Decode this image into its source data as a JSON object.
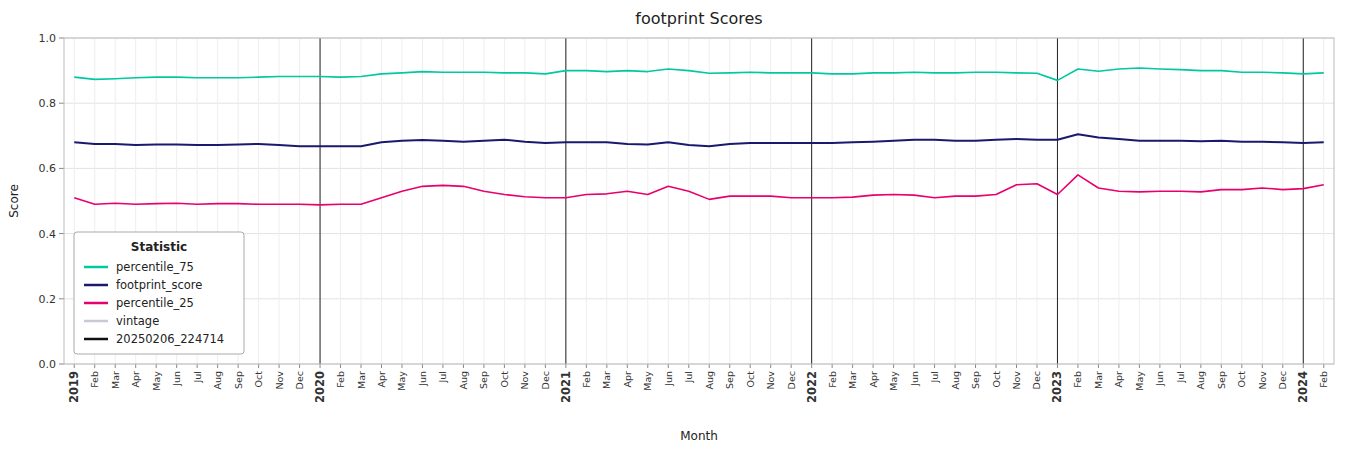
{
  "chart_data": {
    "type": "line",
    "title": "footprint Scores",
    "x_label": "Month",
    "y_label": "Score",
    "categories": [
      "2019",
      "Feb",
      "Mar",
      "Apr",
      "May",
      "Jun",
      "Jul",
      "Aug",
      "Sep",
      "Oct",
      "Nov",
      "Dec",
      "2020",
      "Feb",
      "Mar",
      "Apr",
      "May",
      "Jun",
      "Jul",
      "Aug",
      "Sep",
      "Oct",
      "Nov",
      "Dec",
      "2021",
      "Feb",
      "Mar",
      "Apr",
      "May",
      "Jun",
      "Jul",
      "Aug",
      "Sep",
      "Oct",
      "Nov",
      "Dec",
      "2022",
      "Feb",
      "Mar",
      "Apr",
      "May",
      "Jun",
      "Jul",
      "Aug",
      "Sep",
      "Oct",
      "Nov",
      "Dec",
      "2023",
      "Feb",
      "Mar",
      "Apr",
      "May",
      "Jun",
      "Jul",
      "Aug",
      "Sep",
      "Oct",
      "Nov",
      "Dec",
      "2024",
      "Feb"
    ],
    "series": [
      {
        "name": "percentile_75",
        "color": "#00c8a0",
        "values": [
          0.88,
          0.873,
          0.875,
          0.878,
          0.88,
          0.88,
          0.878,
          0.878,
          0.878,
          0.88,
          0.882,
          0.882,
          0.882,
          0.88,
          0.882,
          0.89,
          0.893,
          0.897,
          0.895,
          0.895,
          0.895,
          0.893,
          0.893,
          0.89,
          0.9,
          0.9,
          0.897,
          0.9,
          0.897,
          0.905,
          0.9,
          0.892,
          0.893,
          0.895,
          0.893,
          0.893,
          0.893,
          0.89,
          0.89,
          0.893,
          0.893,
          0.895,
          0.893,
          0.893,
          0.895,
          0.895,
          0.893,
          0.892,
          0.87,
          0.905,
          0.898,
          0.905,
          0.908,
          0.905,
          0.903,
          0.9,
          0.9,
          0.895,
          0.895,
          0.893,
          0.89,
          0.893
        ]
      },
      {
        "name": "footprint_score",
        "color": "#191970",
        "values": [
          0.68,
          0.675,
          0.675,
          0.672,
          0.673,
          0.673,
          0.672,
          0.672,
          0.673,
          0.675,
          0.672,
          0.668,
          0.668,
          0.668,
          0.668,
          0.68,
          0.685,
          0.687,
          0.685,
          0.682,
          0.685,
          0.688,
          0.682,
          0.678,
          0.68,
          0.68,
          0.68,
          0.675,
          0.673,
          0.68,
          0.672,
          0.668,
          0.675,
          0.678,
          0.678,
          0.678,
          0.678,
          0.678,
          0.68,
          0.682,
          0.685,
          0.688,
          0.688,
          0.685,
          0.685,
          0.688,
          0.69,
          0.688,
          0.688,
          0.705,
          0.695,
          0.69,
          0.685,
          0.685,
          0.685,
          0.683,
          0.685,
          0.682,
          0.682,
          0.68,
          0.678,
          0.68
        ]
      },
      {
        "name": "percentile_25",
        "color": "#e8006e",
        "values": [
          0.51,
          0.49,
          0.493,
          0.49,
          0.492,
          0.493,
          0.49,
          0.492,
          0.492,
          0.49,
          0.49,
          0.49,
          0.488,
          0.49,
          0.49,
          0.51,
          0.53,
          0.545,
          0.548,
          0.545,
          0.53,
          0.52,
          0.513,
          0.51,
          0.51,
          0.52,
          0.522,
          0.53,
          0.52,
          0.545,
          0.53,
          0.505,
          0.515,
          0.515,
          0.515,
          0.51,
          0.51,
          0.51,
          0.512,
          0.518,
          0.52,
          0.518,
          0.51,
          0.515,
          0.515,
          0.52,
          0.55,
          0.553,
          0.52,
          0.58,
          0.54,
          0.53,
          0.528,
          0.53,
          0.53,
          0.528,
          0.535,
          0.535,
          0.54,
          0.535,
          0.538,
          0.55
        ]
      }
    ],
    "annotations": [
      {
        "type": "vline",
        "x": "2020",
        "color": "#222222"
      },
      {
        "type": "vline",
        "x": "2021",
        "color": "#222222"
      },
      {
        "type": "vline",
        "x": "2022",
        "color": "#222222"
      },
      {
        "type": "vline",
        "x": "2023",
        "color": "#222222"
      },
      {
        "type": "vline",
        "x": "2024",
        "color": "#222222"
      }
    ],
    "legend_title": "Statistic",
    "legend_items": [
      {
        "name": "vintage",
        "color": "#c8c8d8"
      },
      {
        "name": "20250206_224714",
        "color": "#111111"
      }
    ],
    "ylim": [
      0.0,
      1.0
    ],
    "yticks": [
      {
        "value": 0.0,
        "label": "0.0"
      },
      0.2,
      0.4,
      0.6,
      0.8,
      {
        "value": 1.0,
        "label": "1.0"
      }
    ],
    "grid": true,
    "legend": "lower left"
  }
}
